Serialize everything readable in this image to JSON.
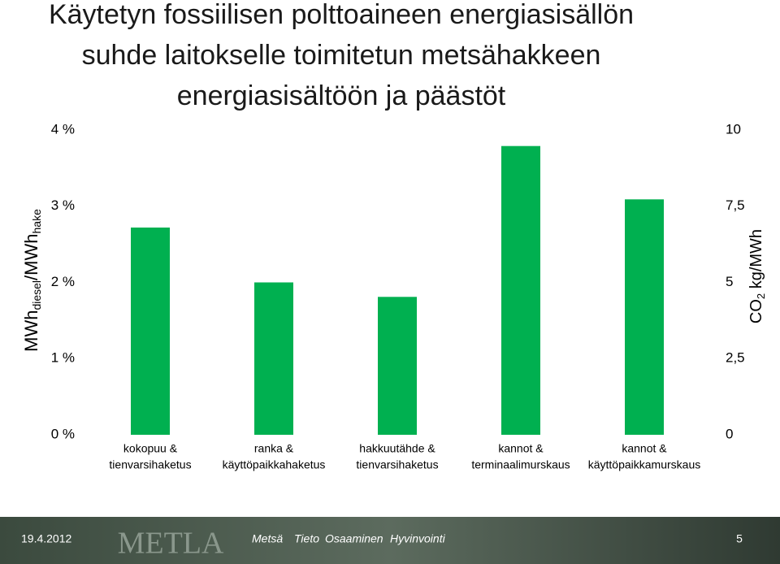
{
  "chart_data": {
    "type": "bar",
    "title": [
      "Käytetyn fossiilisen polttoaineen energiasisällön",
      "suhde laitokselle toimitetun metsähakkeen",
      "energiasisältöön ja päästöt"
    ],
    "y_label": {
      "main": "MWh",
      "sub1": "diesel",
      "mid": "/MWh",
      "sub2": "hake"
    },
    "y2_label": {
      "main": "CO",
      "sub": "2",
      "rest": " kg/MWh"
    },
    "categories": [
      [
        "kokopuu &",
        "tienvarsihaketus"
      ],
      [
        "ranka &",
        "käyttöpaikkahaketus"
      ],
      [
        "hakkuutähde &",
        "tienvarsihaketus"
      ],
      [
        "kannot &",
        "terminaalimurskaus"
      ],
      [
        "kannot &",
        "käyttöpaikkamurskaus"
      ]
    ],
    "values": [
      2.72,
      2.0,
      1.81,
      3.79,
      3.09
    ],
    "color": "#00b050",
    "ylim": [
      0,
      4
    ],
    "yticks": [
      {
        "value": 0,
        "label": "0 %"
      },
      {
        "value": 1,
        "label": "1 %"
      },
      {
        "value": 2,
        "label": "2 %"
      },
      {
        "value": 3,
        "label": "3 %"
      },
      {
        "value": 4,
        "label": "4 %"
      }
    ],
    "y2lim": [
      0,
      10
    ],
    "y2ticks": [
      0,
      {
        "value": 2.5,
        "label": "2,5"
      },
      5,
      {
        "value": 7.5,
        "label": "7,5"
      },
      10
    ],
    "grid": false
  },
  "footer": {
    "date": "19.4.2012",
    "logo": "METLA",
    "tagline": [
      "Metsä",
      "Tieto",
      "Osaaminen",
      "Hyvinvointi"
    ],
    "page": "5"
  }
}
